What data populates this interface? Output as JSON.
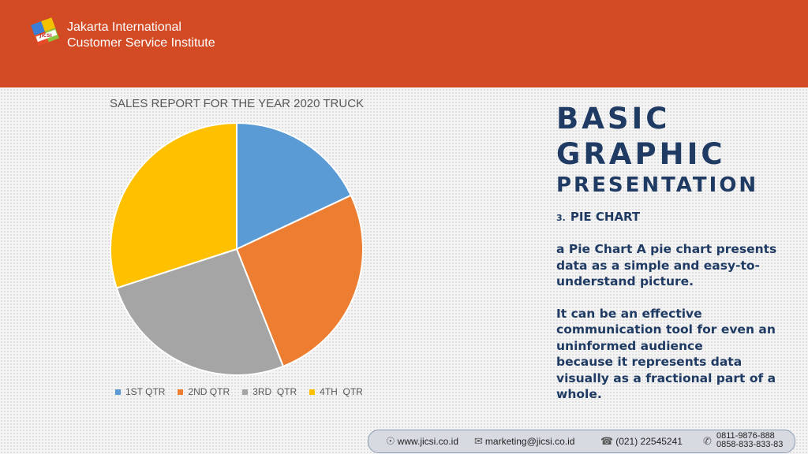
{
  "header": {
    "org_line1": "Jakarta International",
    "org_line2": "Customer Service Institute",
    "logo_text": "JICSI",
    "color": "#d34b25"
  },
  "chart_data": {
    "type": "pie",
    "title": "SALES REPORT FOR THE YEAR 2020 TRUCK",
    "categories": [
      "1ST QTR",
      "2ND QTR",
      "3RD  QTR",
      "4TH  QTR"
    ],
    "values": [
      18,
      26,
      26,
      30
    ],
    "colors": [
      "#5b9bd5",
      "#ed7d31",
      "#a5a5a5",
      "#ffc000"
    ],
    "legend": "bottom"
  },
  "content": {
    "title_line1": "BASIC",
    "title_line2": "GRAPHIC",
    "title_line3": "PRESENTATION",
    "section_number": "3.",
    "section_title": "PIE CHART",
    "paragraph1": "a Pie Chart A pie chart presents data as a simple and easy-to-understand picture.",
    "paragraph2_line1": "It can be an effective communication tool for even an uninformed audience",
    "paragraph2_line2": "because it represents data visually as a fractional part of a whole."
  },
  "footer": {
    "website": "www.jicsi.co.id",
    "email": "marketing@jicsi.co.id",
    "phone": "(021) 22545241",
    "whatsapp1": "0811-9876-888",
    "whatsapp2": "0858-833-833-83"
  }
}
